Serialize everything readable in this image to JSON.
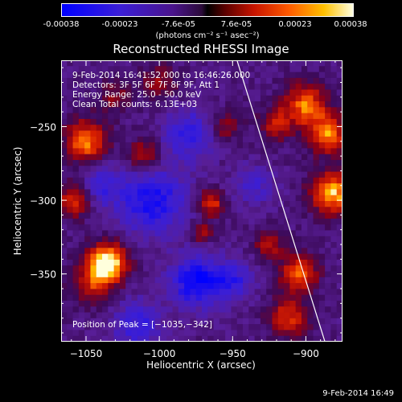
{
  "colorbar": {
    "ticks": [
      "-0.00038",
      "-0.00023",
      "-7.6e-05",
      "7.6e-05",
      "0.00023",
      "0.00038"
    ],
    "units": "(photons cm⁻² s⁻¹ asec⁻²)"
  },
  "chart_data": {
    "type": "heatmap",
    "title": "Reconstructed RHESSI Image",
    "xlabel": "Heliocentric X (arcsec)",
    "ylabel": "Heliocentric Y (arcsec)",
    "xlim": [
      -1067,
      -875
    ],
    "ylim": [
      -396,
      -205
    ],
    "xticks": [
      -1050,
      -1000,
      -950,
      -900
    ],
    "xtick_labels": [
      "−1050",
      "−1000",
      "−950",
      "−900"
    ],
    "yticks": [
      -250,
      -300,
      -350
    ],
    "ytick_labels": [
      "−250",
      "−300",
      "−350"
    ],
    "zlim": [
      -0.00038,
      0.00038
    ],
    "peak_position": [
      -1035,
      -342
    ],
    "limb_line": [
      [
        -947,
        -205
      ],
      [
        -887,
        -396
      ]
    ],
    "annotations": [
      "9-Feb-2014 16:41:52.000 to 16:46:26.000",
      "Detectors: 3F 5F 6F 7F 8F 9F, Att 1",
      "Energy Range: 25.0 - 50.0 keV",
      "Clean    Total counts: 6.13E+03",
      "Position of Peak = [−1035,−342]"
    ],
    "colors": {
      "negative": "#0000ff",
      "zero": "#000000",
      "positive": "#ffffe0"
    }
  },
  "footer": "9-Feb-2014 16:49"
}
